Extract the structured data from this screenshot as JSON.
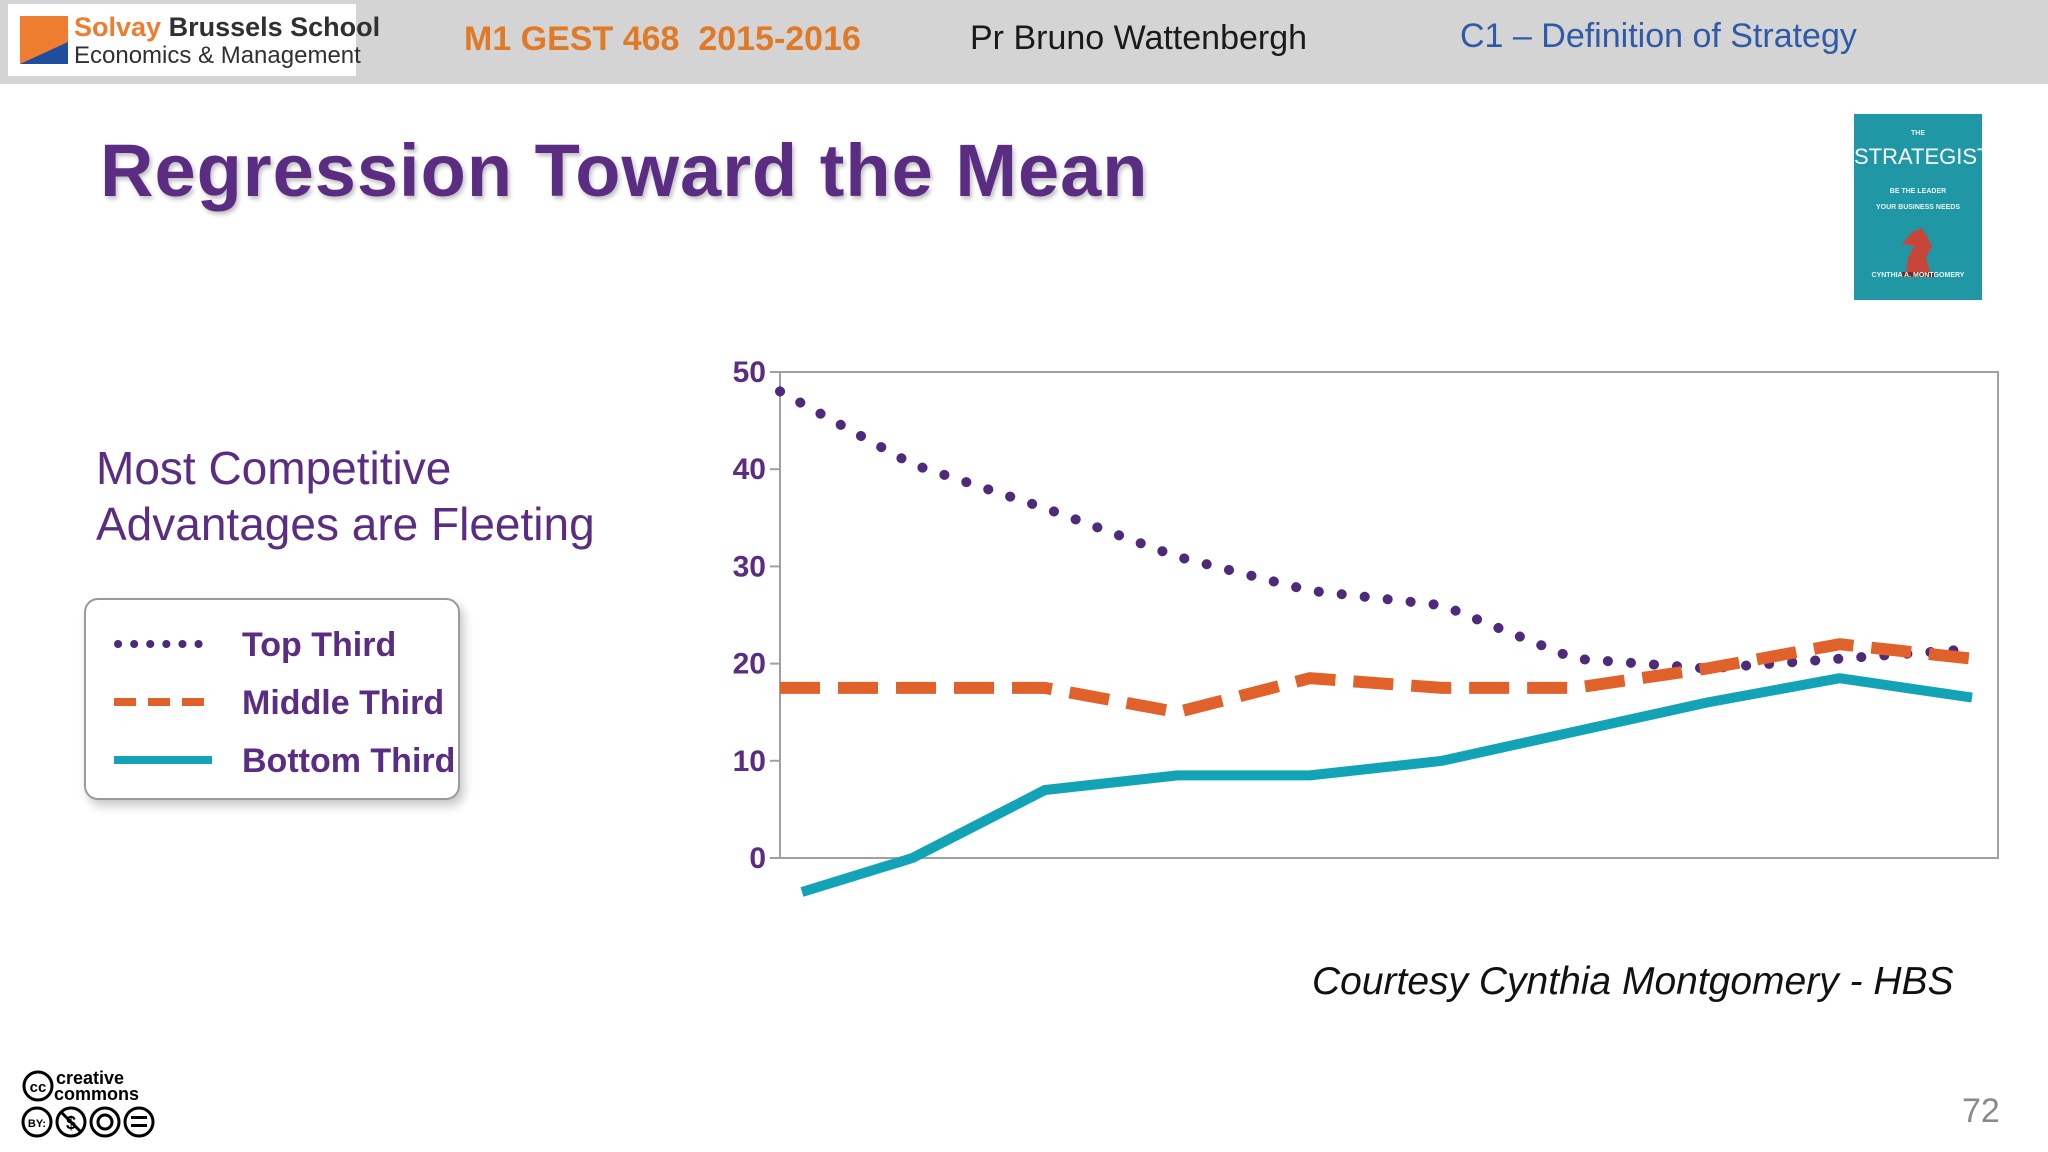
{
  "header": {
    "logo_line1_accent": "Solvay",
    "logo_line1_rest": "Brussels School",
    "logo_line2": "Economics & Management",
    "course": "M1 GEST 468  2015-2016",
    "professor": "Pr Bruno Wattenbergh",
    "chapter": "C1 – Definition of Strategy",
    "colors": {
      "bar": "#d4d4d4",
      "course": "#e07a26",
      "chapter": "#2e5aa8",
      "logo_accent": "#ee7d2f",
      "logo_blue": "#1f4e9e"
    }
  },
  "slide": {
    "title": "Regression Toward the Mean",
    "subtitle_line1": "Most Competitive",
    "subtitle_line2": "Advantages are Fleeting",
    "courtesy": "Courtesy Cynthia Montgomery - HBS",
    "page_number": "72",
    "title_color": "#5a2d82"
  },
  "book": {
    "top_small": "THE",
    "title": "STRATEGIST",
    "line1": "BE THE LEADER",
    "line2": "YOUR BUSINESS NEEDS",
    "author": "CYNTHIA A. MONTGOMERY",
    "cover_color": "#1f97a4"
  },
  "license_icon": "creative-commons-by-nc-nd-icon",
  "chart_data": {
    "type": "line",
    "x": [
      1,
      2,
      3,
      4,
      5,
      6,
      7,
      8,
      9,
      10
    ],
    "ylim": [
      0,
      50
    ],
    "yticks": [
      0,
      10,
      20,
      30,
      40,
      50
    ],
    "grid": false,
    "legend_placement": "left",
    "series": [
      {
        "name": "Top Third",
        "style": "dotted",
        "color": "#4e2a7a",
        "values": [
          48,
          40.5,
          36,
          31,
          27.5,
          26,
          20.5,
          19.5,
          20.5,
          21.5
        ]
      },
      {
        "name": "Middle Third",
        "style": "dashed",
        "color": "#e0622a",
        "values": [
          17.5,
          17.5,
          17.5,
          15,
          18.5,
          17.5,
          17.5,
          19.5,
          22,
          20.5
        ]
      },
      {
        "name": "Bottom Third",
        "style": "solid",
        "color": "#12a4b6",
        "values": [
          -3.5,
          0,
          7,
          8.5,
          8.5,
          10,
          13,
          16,
          18.5,
          16.5
        ]
      }
    ]
  }
}
